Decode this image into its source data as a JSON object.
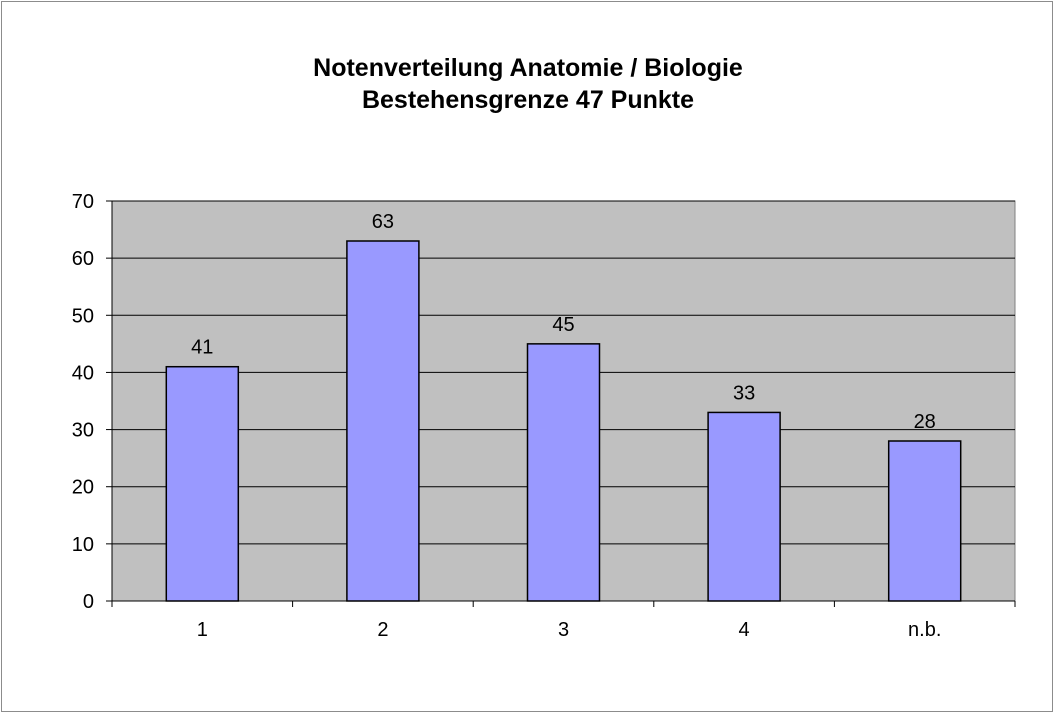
{
  "chart_data": {
    "type": "bar",
    "title": "Notenverteilung Anatomie / Biologie",
    "subtitle": "Bestehensgrenze 47 Punkte",
    "categories": [
      "1",
      "2",
      "3",
      "4",
      "n.b."
    ],
    "values": [
      41,
      63,
      45,
      33,
      28
    ],
    "ylim": [
      0,
      70
    ],
    "yticks": [
      0,
      10,
      20,
      30,
      40,
      50,
      60,
      70
    ],
    "grid": true,
    "legend": "none",
    "colors": {
      "bar": "#9999ff",
      "plot_background": "#c0c0c0",
      "gridline": "#000000"
    }
  }
}
